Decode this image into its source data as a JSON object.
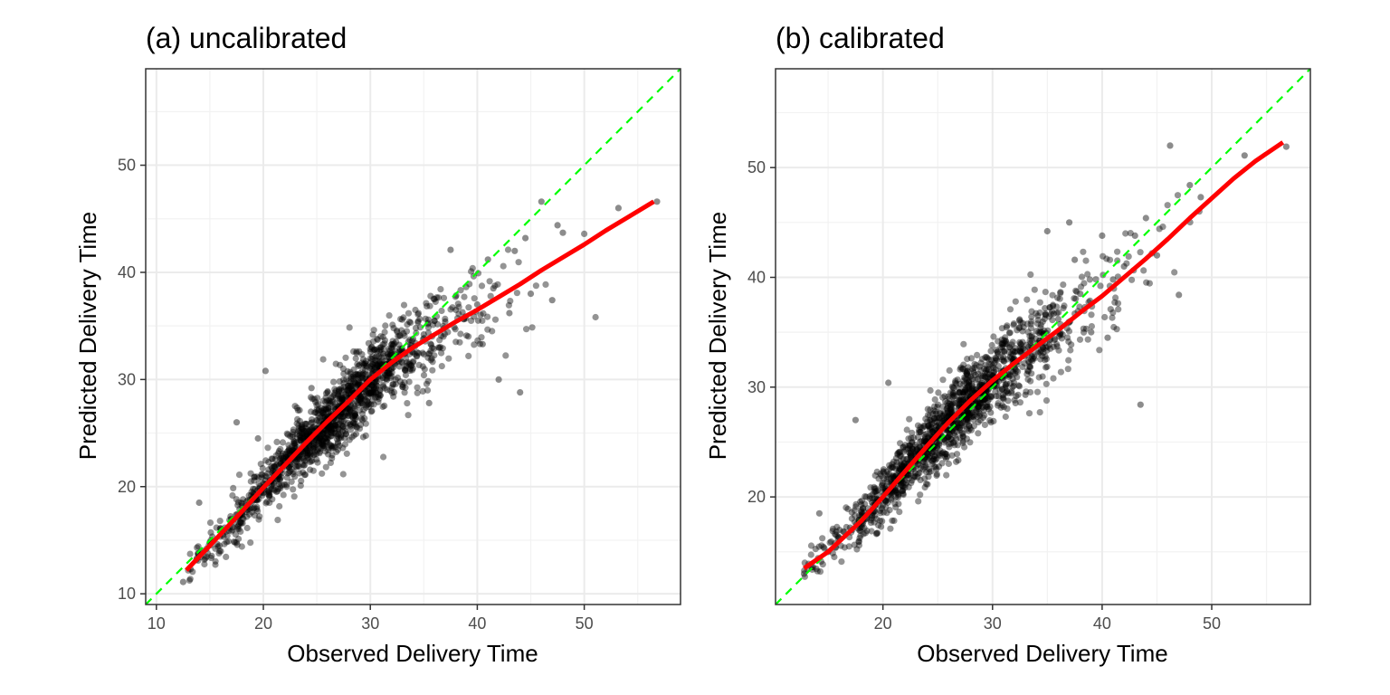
{
  "chart_data": [
    {
      "type": "scatter",
      "title": "(a) uncalibrated",
      "xlabel": "Observed Delivery Time",
      "ylabel": "Predicted Delivery Time",
      "xlim": [
        9,
        59
      ],
      "ylim": [
        9,
        59
      ],
      "x_ticks": [
        10,
        20,
        30,
        40,
        50
      ],
      "y_ticks": [
        10,
        20,
        30,
        40,
        50
      ],
      "grid": true,
      "point_color": "#000000",
      "fit_color": "#ff0000",
      "identity_color": "#00ff00",
      "points_summary": {
        "n": 1400,
        "x_range": [
          12.5,
          57
        ],
        "center_fit": "smooth"
      },
      "fit_line": {
        "x": [
          12.8,
          15,
          18,
          20,
          22,
          24,
          26,
          28,
          30,
          32,
          34,
          36,
          38,
          40,
          42,
          44,
          46,
          48,
          50,
          52,
          54,
          56.5
        ],
        "y": [
          12.2,
          14.5,
          17.7,
          19.9,
          22.0,
          24.1,
          26.1,
          28.0,
          30.0,
          31.6,
          33.0,
          34.2,
          35.4,
          36.5,
          37.7,
          38.9,
          40.2,
          41.4,
          42.6,
          43.9,
          45.1,
          46.6
        ]
      },
      "identity_line": {
        "x": [
          9,
          59
        ],
        "y": [
          9,
          59
        ]
      },
      "sample_points": {
        "x": [
          12.5,
          13.2,
          14.0,
          14.5,
          15.0,
          16.0,
          17.0,
          17.5,
          18.0,
          19.0,
          19.5,
          20.0,
          20.2,
          21.0,
          22.0,
          23.0,
          24.0,
          24.5,
          25.0,
          26.0,
          27.0,
          28.0,
          29.0,
          30.0,
          31.0,
          32.0,
          33.0,
          34.0,
          35.0,
          35.5,
          36.0,
          37.0,
          37.5,
          38.0,
          39.0,
          40.0,
          40.5,
          41.0,
          41.5,
          42.0,
          43.0,
          43.5,
          44.0,
          44.5,
          45.0,
          46.0,
          47.0,
          47.5,
          48.0,
          53.2,
          56.8
        ],
        "y": [
          11.1,
          12.3,
          18.5,
          13.2,
          14.8,
          16.1,
          17.0,
          26.0,
          18.2,
          19.0,
          24.5,
          20.3,
          30.8,
          21.0,
          22.4,
          23.1,
          24.0,
          29.2,
          25.2,
          26.4,
          27.0,
          28.3,
          29.5,
          30.2,
          33.0,
          31.0,
          29.5,
          33.8,
          34.2,
          27.8,
          37.5,
          35.4,
          42.1,
          36.5,
          34.1,
          37.0,
          33.3,
          41.2,
          38.5,
          30.0,
          36.2,
          42.0,
          28.8,
          43.2,
          38.0,
          46.6,
          37.4,
          44.4,
          43.7,
          46.0,
          46.6
        ]
      }
    },
    {
      "type": "scatter",
      "title": "(b) calibrated",
      "xlabel": "Observed Delivery Time",
      "ylabel": "Predicted Delivery Time",
      "xlim": [
        10.2,
        59
      ],
      "ylim": [
        10.2,
        59
      ],
      "x_ticks": [
        20,
        30,
        40,
        50
      ],
      "y_ticks": [
        20,
        30,
        40,
        50
      ],
      "grid": true,
      "point_color": "#000000",
      "fit_color": "#ff0000",
      "identity_color": "#00ff00",
      "points_summary": {
        "n": 1400,
        "x_range": [
          12.5,
          57
        ],
        "center_fit": "smooth"
      },
      "fit_line": {
        "x": [
          12.8,
          15,
          18,
          20,
          22,
          24,
          26,
          28,
          30,
          32,
          34,
          36,
          38,
          40,
          42,
          44,
          46,
          48,
          50,
          52,
          54,
          56.5
        ],
        "y": [
          13.5,
          15.0,
          17.8,
          20.0,
          22.3,
          24.6,
          26.8,
          28.8,
          30.6,
          32.2,
          33.7,
          35.2,
          36.8,
          38.3,
          40.0,
          41.7,
          43.5,
          45.4,
          47.2,
          49.0,
          50.6,
          52.3
        ]
      },
      "identity_line": {
        "x": [
          10.2,
          59
        ],
        "y": [
          10.2,
          59
        ]
      },
      "sample_points": {
        "x": [
          12.8,
          13.5,
          14.2,
          15.0,
          16.0,
          17.0,
          17.5,
          18.0,
          19.0,
          20.0,
          20.5,
          21.0,
          22.0,
          23.0,
          24.0,
          25.0,
          26.0,
          27.0,
          28.0,
          29.0,
          30.0,
          31.0,
          32.0,
          33.0,
          34.0,
          35.0,
          36.0,
          37.0,
          37.5,
          38.0,
          39.0,
          40.0,
          40.5,
          41.0,
          42.0,
          43.0,
          43.5,
          44.0,
          45.0,
          46.2,
          47.0,
          48.0,
          49.0,
          53.0,
          56.8
        ],
        "y": [
          13.0,
          13.6,
          18.5,
          15.0,
          16.3,
          17.2,
          27.0,
          18.8,
          19.5,
          20.1,
          30.4,
          21.2,
          22.5,
          23.3,
          24.4,
          25.5,
          27.0,
          27.7,
          28.9,
          30.4,
          31.0,
          34.0,
          31.8,
          29.3,
          35.1,
          44.2,
          36.2,
          45.0,
          41.6,
          38.5,
          35.0,
          43.8,
          34.5,
          39.8,
          41.0,
          43.8,
          28.4,
          45.4,
          42.0,
          52.0,
          38.4,
          48.4,
          47.3,
          51.1,
          51.9
        ]
      }
    }
  ]
}
